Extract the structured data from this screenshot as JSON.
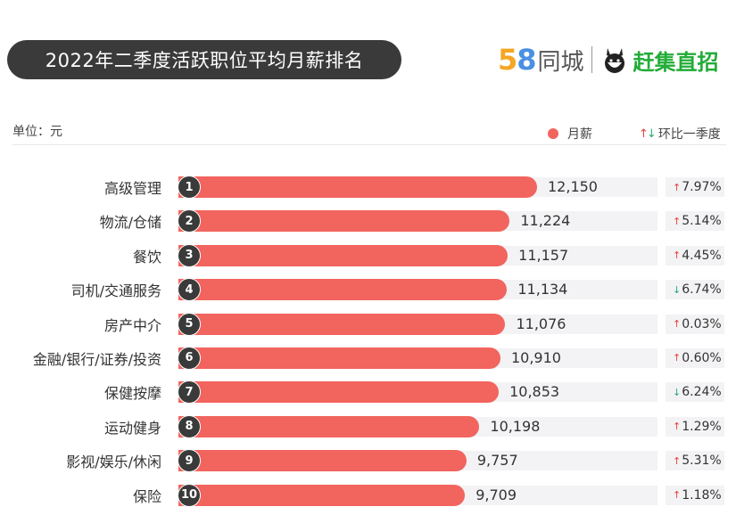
{
  "title": "2022年二季度活跃职位平均月薪排名",
  "brand": {
    "digit_5": "5",
    "digit_8": "8",
    "tongcheng": "同城",
    "ganji": "赶集直招"
  },
  "unit_label": "单位：元",
  "legend": {
    "salary": "月薪",
    "qoq": "环比一季度"
  },
  "colors": {
    "bar": "#f2645e",
    "up_arrow": "#e8403a",
    "down_arrow": "#2aa876",
    "title_bg": "#3a3a3a"
  },
  "chart_data": {
    "type": "bar",
    "orientation": "horizontal",
    "categories": [
      "高级管理",
      "物流/仓储",
      "餐饮",
      "司机/交通服务",
      "房产中介",
      "金融/银行/证券/投资",
      "保健按摩",
      "运动健身",
      "影视/娱乐/休闲",
      "保险"
    ],
    "ranks": [
      "1",
      "2",
      "3",
      "4",
      "5",
      "6",
      "7",
      "8",
      "9",
      "10"
    ],
    "values": [
      12150,
      11224,
      11157,
      11134,
      11076,
      10910,
      10853,
      10198,
      9757,
      9709
    ],
    "value_labels": [
      "12,150",
      "11,224",
      "11,157",
      "11,134",
      "11,076",
      "10,910",
      "10,853",
      "10,198",
      "9,757",
      "9,709"
    ],
    "changes": [
      {
        "direction": "up",
        "label": "7.97%"
      },
      {
        "direction": "up",
        "label": "5.14%"
      },
      {
        "direction": "up",
        "label": "4.45%"
      },
      {
        "direction": "down",
        "label": "6.74%"
      },
      {
        "direction": "up",
        "label": "0.03%"
      },
      {
        "direction": "up",
        "label": "0.60%"
      },
      {
        "direction": "down",
        "label": "6.24%"
      },
      {
        "direction": "up",
        "label": "1.29%"
      },
      {
        "direction": "up",
        "label": "5.31%"
      },
      {
        "direction": "up",
        "label": "1.18%"
      }
    ],
    "series": [
      {
        "name": "月薪"
      }
    ],
    "legend_position": "top-right"
  }
}
